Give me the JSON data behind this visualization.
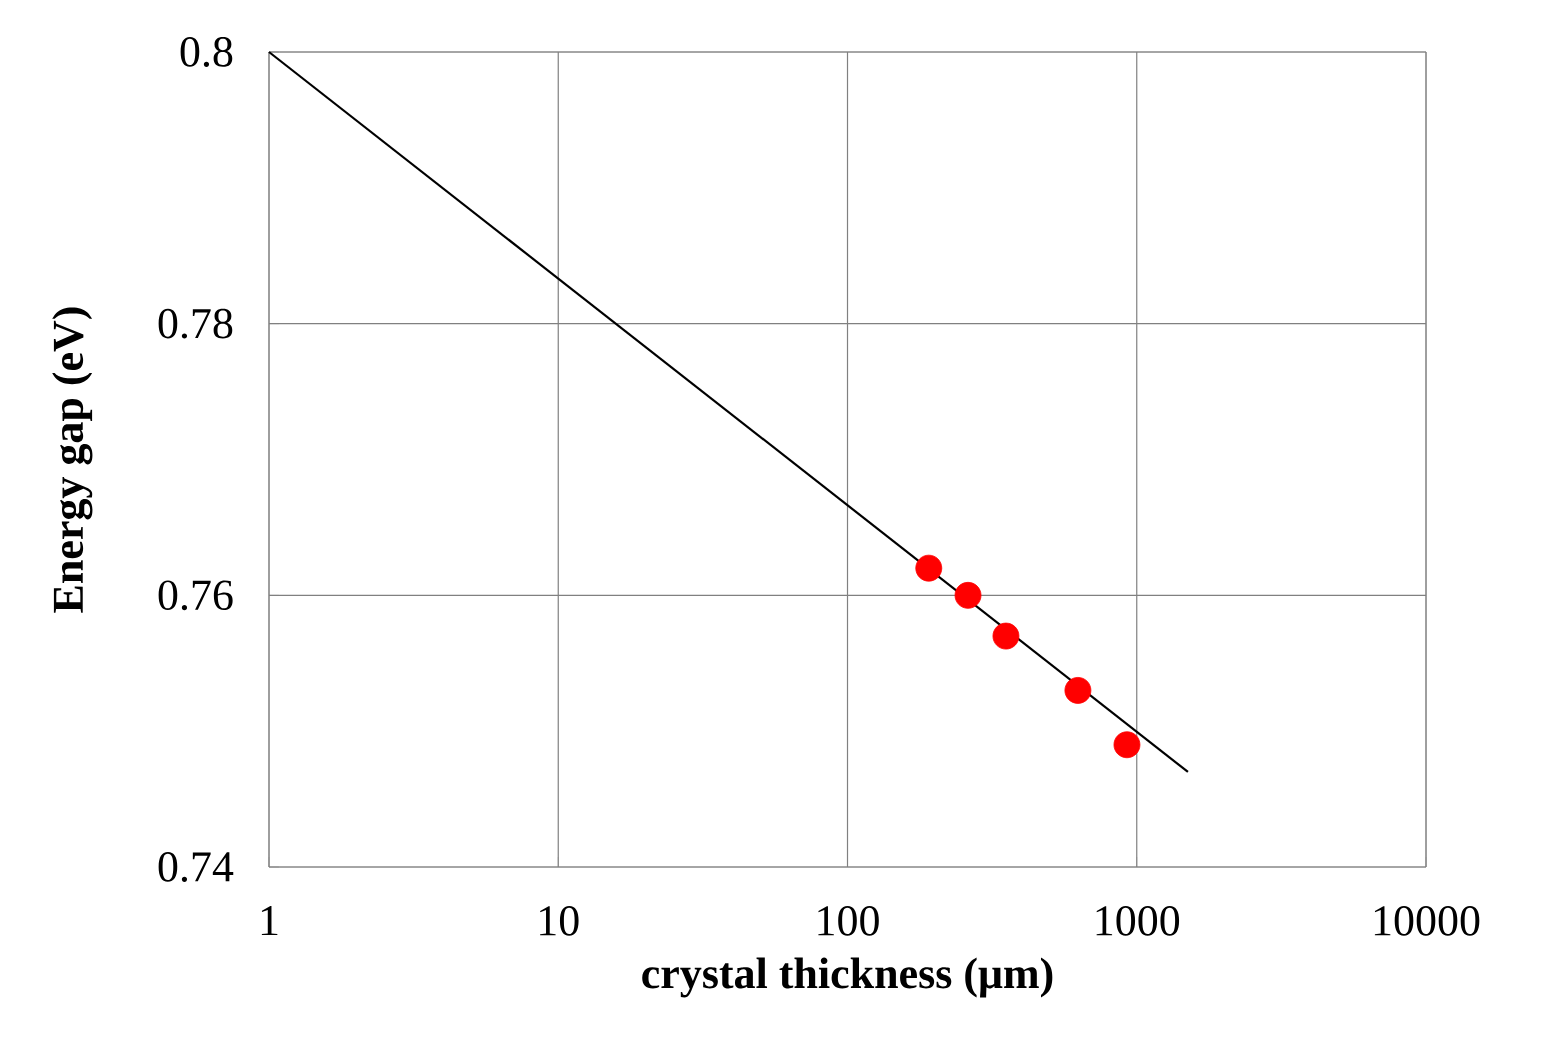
{
  "chart_data": {
    "type": "scatter",
    "xlabel": "crystal thickness (μm)",
    "ylabel": "Energy gap (eV)",
    "log": "x",
    "xlim": [
      1,
      10000
    ],
    "xticks": [
      1,
      10,
      100,
      1000,
      10000
    ],
    "ylim": [
      0.74,
      0.8
    ],
    "yticks": [
      0.74,
      0.76,
      0.78,
      0.8
    ],
    "grid": true,
    "series": [
      {
        "color": "#ff0000",
        "marker": "circle",
        "x": [
          191,
          261,
          353,
          626,
          925
        ],
        "values": [
          0.762,
          0.76,
          0.757,
          0.753,
          0.749
        ]
      },
      {
        "type": "line",
        "color": "#000000",
        "marker": "none",
        "line_style": "solid",
        "x": [
          1,
          1503
        ],
        "values": [
          0.8,
          0.747
        ]
      }
    ]
  }
}
